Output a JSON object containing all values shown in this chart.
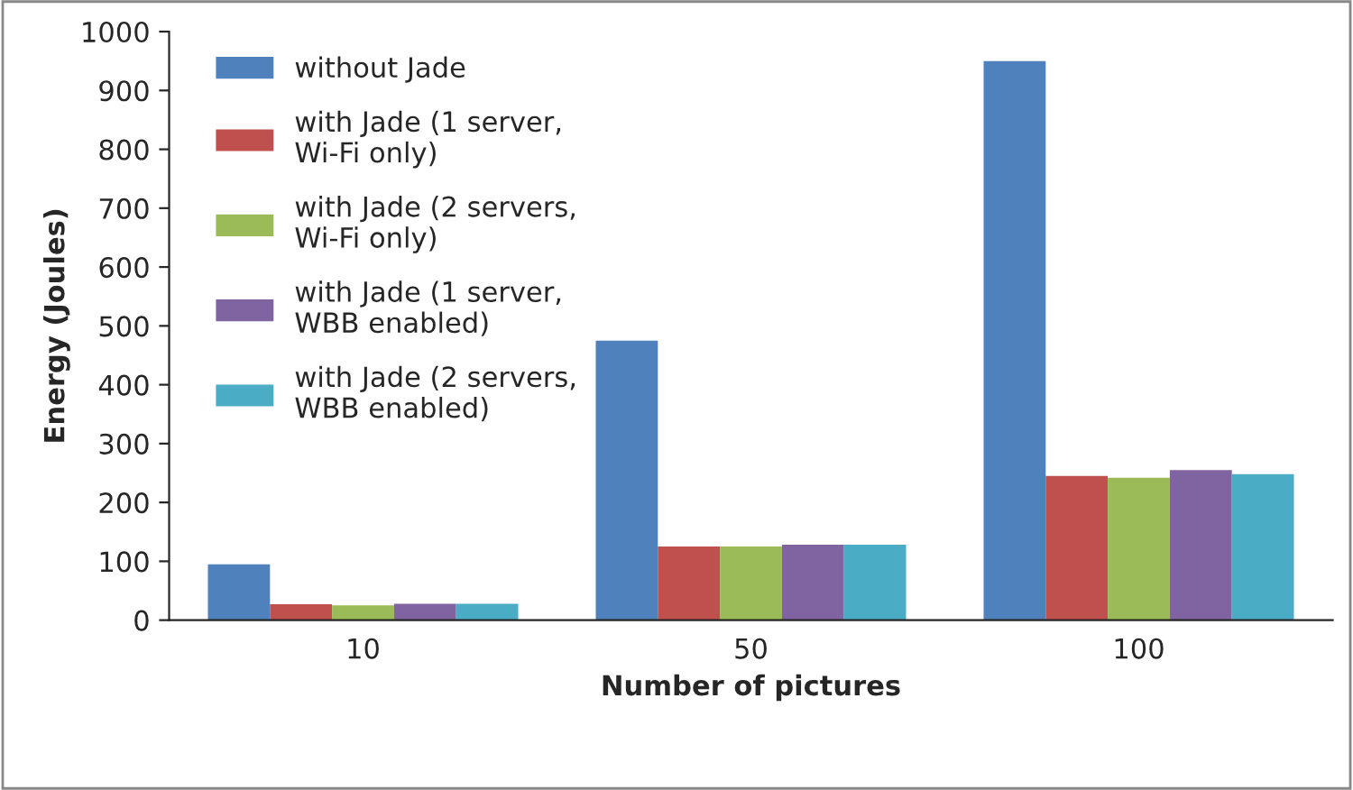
{
  "chart_data": {
    "type": "bar",
    "xlabel": "Number of pictures",
    "ylabel": "Energy (Joules)",
    "categories": [
      "10",
      "50",
      "100"
    ],
    "series": [
      {
        "name": "without Jade",
        "color": "#4f81bd",
        "values": [
          95,
          475,
          950
        ]
      },
      {
        "name": "with Jade (1 server,\nWi-Fi only)",
        "color": "#c0504d",
        "values": [
          27,
          125,
          245
        ]
      },
      {
        "name": "with Jade (2 servers,\nWi-Fi only)",
        "color": "#9bbb59",
        "values": [
          25,
          125,
          242
        ]
      },
      {
        "name": "with Jade (1 server,\nWBB enabled)",
        "color": "#8064a2",
        "values": [
          28,
          128,
          255
        ]
      },
      {
        "name": "with Jade (2 servers,\nWBB enabled)",
        "color": "#4bacc6",
        "values": [
          28,
          128,
          248
        ]
      }
    ],
    "ylim": [
      0,
      1000
    ],
    "yticks": [
      0,
      100,
      200,
      300,
      400,
      500,
      600,
      700,
      800,
      900,
      1000
    ],
    "grid": false,
    "legend": "top left"
  }
}
